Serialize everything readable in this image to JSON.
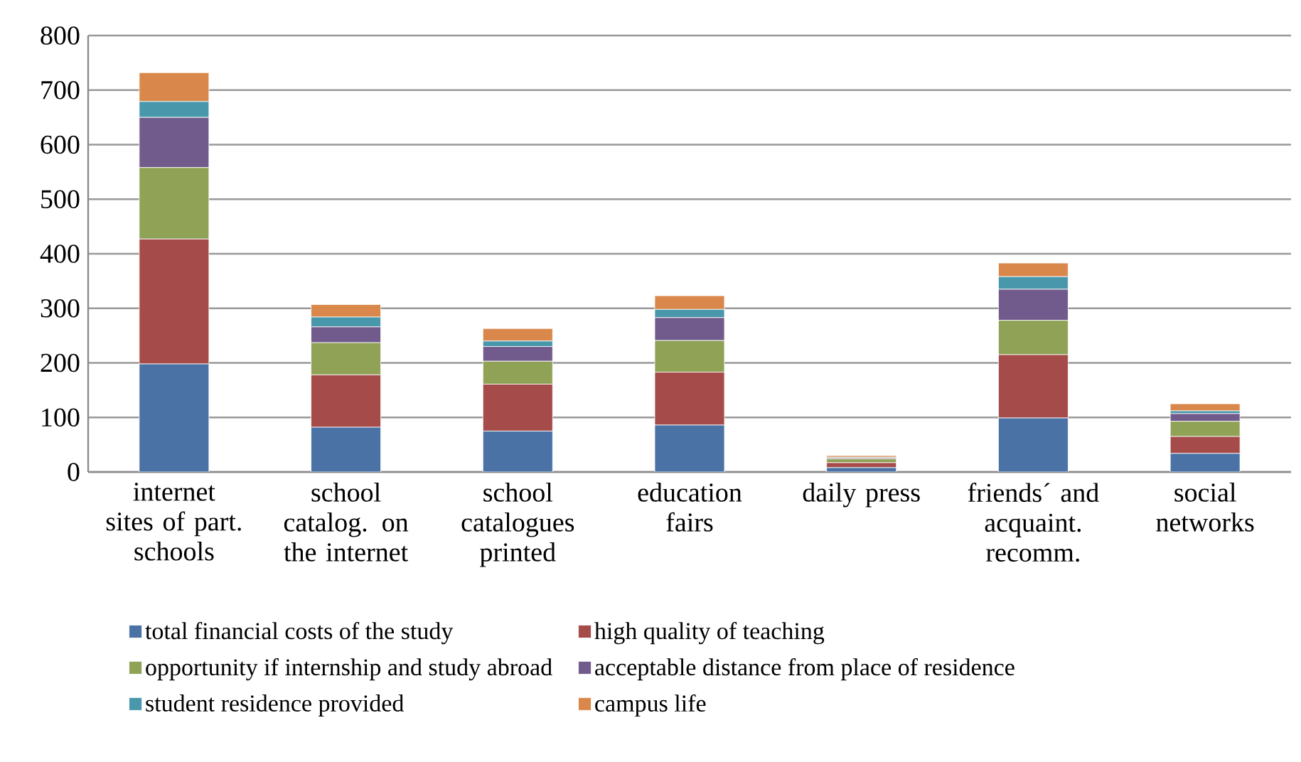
{
  "chart_data": {
    "type": "bar",
    "stacked": true,
    "categories": [
      "internet sites of part. schools",
      "school catalog. on the internet",
      "school catalogues printed",
      "education fairs",
      "daily press",
      "friends´ and acquaint. recomm.",
      "social networks"
    ],
    "series": [
      {
        "name": "total financial costs of the study",
        "color": "#4a72a5",
        "values": [
          198,
          82,
          75,
          86,
          8,
          99,
          34
        ]
      },
      {
        "name": "high quality of teaching",
        "color": "#a54b4a",
        "values": [
          229,
          96,
          86,
          97,
          9,
          116,
          31
        ]
      },
      {
        "name": "opportunity if internship and study abroad",
        "color": "#8fa256",
        "values": [
          131,
          59,
          42,
          58,
          7,
          63,
          28
        ]
      },
      {
        "name": "acceptable distance from place of residence",
        "color": "#715b8c",
        "values": [
          92,
          29,
          27,
          42,
          2,
          57,
          14
        ]
      },
      {
        "name": "student residence provided",
        "color": "#4897ab",
        "values": [
          29,
          18,
          10,
          15,
          1,
          23,
          5
        ]
      },
      {
        "name": "campus life",
        "color": "#d9874a",
        "values": [
          53,
          23,
          23,
          25,
          3,
          25,
          13
        ]
      }
    ],
    "ylim": [
      0,
      800
    ],
    "yticks": [
      0,
      100,
      200,
      300,
      400,
      500,
      600,
      700,
      800
    ],
    "grid": "y",
    "legend": "bottom"
  }
}
